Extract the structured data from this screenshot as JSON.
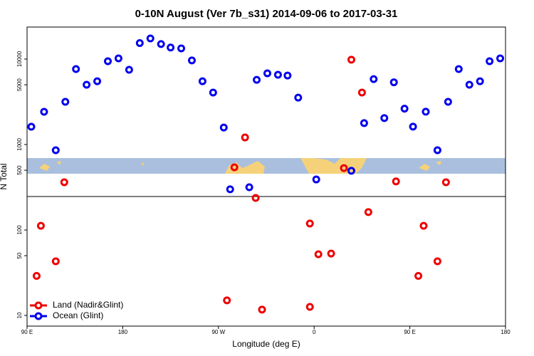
{
  "chart_data": {
    "type": "scatter",
    "title": "0-10N August (Ver 7b_s31)   2014-09-06 to 2017-03-31",
    "x_label": "Longitude (deg E)",
    "y_label": "N Total",
    "xlim": [
      90,
      540
    ],
    "xticks": [
      {
        "value": 90,
        "label": "90 E"
      },
      180,
      {
        "value": 270,
        "label": "90 W"
      },
      {
        "value": 360,
        "label": "0"
      },
      {
        "value": 450,
        "label": "90 E"
      },
      {
        "value": 540,
        "label": "180"
      }
    ],
    "ylim": [
      7.5,
      23700
    ],
    "ylog": true,
    "yticks": [
      10,
      50,
      100,
      500,
      1000,
      5000,
      10000
    ],
    "legend": "bottomleft",
    "series": [
      {
        "name": "Land (Nadir&Glint)",
        "color": "#ee0000",
        "x": [
          99,
          103,
          117,
          125,
          278,
          285,
          295,
          305,
          311,
          356,
          356,
          364,
          376,
          388,
          395,
          405,
          411,
          437,
          458,
          463,
          476,
          484
        ],
        "values": [
          29,
          112,
          43,
          362,
          15,
          541,
          1210,
          237,
          11.7,
          12.6,
          119,
          52,
          53,
          530,
          9840,
          4060,
          162,
          370,
          29,
          112,
          43,
          362
        ]
      },
      {
        "name": "Ocean (Glint)",
        "color": "#0000ee",
        "x": [
          94,
          106,
          117,
          126,
          136,
          146,
          156,
          166,
          176,
          186,
          196,
          206,
          216,
          225,
          235,
          245,
          255,
          265,
          275,
          281,
          299,
          306,
          316,
          326,
          335,
          345,
          362,
          395,
          407,
          416,
          426,
          435,
          445,
          453,
          465,
          476,
          486,
          496,
          506,
          516,
          525,
          535
        ],
        "values": [
          1616,
          2417,
          858,
          3162,
          7640,
          5012,
          5500,
          9440,
          10190,
          7500,
          15400,
          17450,
          15000,
          13660,
          13340,
          9650,
          5500,
          4060,
          1580,
          299,
          316,
          5720,
          6810,
          6550,
          6420,
          3540,
          390,
          493,
          1780,
          5830,
          2040,
          5350,
          2630,
          1620,
          2420,
          858,
          3160,
          7640,
          5010,
          5500,
          9440,
          10190
        ]
      }
    ]
  }
}
